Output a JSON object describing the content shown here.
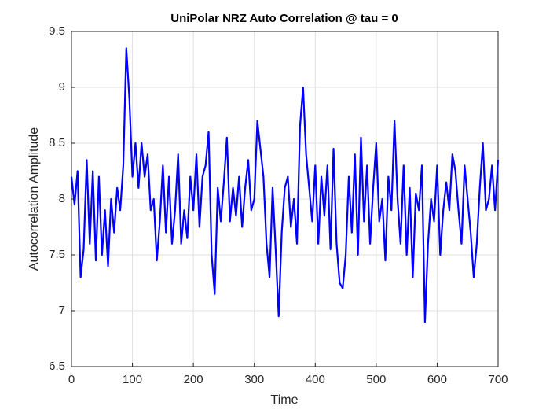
{
  "chart_data": {
    "type": "line",
    "title": "UniPolar NRZ Auto Correlation @ tau = 0",
    "xlabel": "Time",
    "ylabel": "Autocorrelation Amplitude",
    "xlim": [
      0,
      700
    ],
    "ylim": [
      6.5,
      9.5
    ],
    "xticks": [
      0,
      100,
      200,
      300,
      400,
      500,
      600,
      700
    ],
    "yticks": [
      6.5,
      7,
      7.5,
      8,
      8.5,
      9,
      9.5
    ],
    "grid": true,
    "series": [
      {
        "color": "#0000ff",
        "x": [
          0,
          5,
          10,
          15,
          20,
          25,
          30,
          35,
          40,
          45,
          50,
          55,
          60,
          65,
          70,
          75,
          80,
          85,
          90,
          95,
          100,
          105,
          110,
          115,
          120,
          125,
          130,
          135,
          140,
          145,
          150,
          155,
          160,
          165,
          170,
          175,
          180,
          185,
          190,
          195,
          200,
          205,
          210,
          215,
          220,
          225,
          230,
          235,
          240,
          245,
          250,
          255,
          260,
          265,
          270,
          275,
          280,
          285,
          290,
          295,
          300,
          305,
          310,
          315,
          320,
          325,
          330,
          335,
          340,
          345,
          350,
          355,
          360,
          365,
          370,
          375,
          380,
          385,
          390,
          395,
          400,
          405,
          410,
          415,
          420,
          425,
          430,
          435,
          440,
          445,
          450,
          455,
          460,
          465,
          470,
          475,
          480,
          485,
          490,
          495,
          500,
          505,
          510,
          515,
          520,
          525,
          530,
          535,
          540,
          545,
          550,
          555,
          560,
          565,
          570,
          575,
          580,
          585,
          590,
          595,
          600,
          605,
          610,
          615,
          620,
          625,
          630,
          635,
          640,
          645,
          650,
          655,
          660,
          665,
          670,
          675,
          680,
          685,
          690,
          695,
          700
        ],
        "values": [
          8.2,
          7.95,
          8.25,
          7.3,
          7.55,
          8.35,
          7.6,
          8.25,
          7.45,
          8.2,
          7.5,
          7.9,
          7.4,
          8.0,
          7.7,
          8.1,
          7.9,
          8.3,
          9.35,
          8.9,
          8.2,
          8.5,
          8.1,
          8.5,
          8.2,
          8.4,
          7.9,
          8.0,
          7.45,
          7.8,
          8.3,
          7.7,
          8.2,
          7.6,
          7.9,
          8.4,
          7.6,
          7.9,
          7.65,
          8.2,
          7.9,
          8.4,
          7.75,
          8.2,
          8.3,
          8.6,
          7.5,
          7.15,
          8.1,
          7.8,
          8.15,
          8.55,
          7.8,
          8.1,
          7.85,
          8.2,
          7.75,
          8.1,
          8.35,
          7.9,
          8.0,
          8.7,
          8.45,
          8.2,
          7.6,
          7.3,
          8.1,
          7.55,
          6.95,
          7.7,
          8.1,
          8.2,
          7.75,
          8.0,
          7.6,
          8.65,
          9.0,
          8.4,
          8.1,
          7.8,
          8.3,
          7.6,
          8.2,
          7.85,
          8.3,
          7.55,
          8.45,
          7.6,
          7.25,
          7.2,
          7.5,
          8.2,
          7.7,
          8.4,
          7.5,
          8.55,
          7.8,
          8.3,
          7.6,
          8.1,
          8.5,
          7.8,
          8.0,
          7.45,
          8.2,
          7.9,
          8.7,
          8.0,
          7.6,
          8.3,
          7.5,
          8.1,
          7.3,
          8.05,
          7.9,
          8.3,
          6.9,
          7.6,
          8.0,
          7.8,
          8.3,
          7.5,
          7.9,
          8.15,
          7.9,
          8.4,
          8.25,
          7.9,
          7.6,
          8.3,
          8.0,
          7.7,
          7.3,
          7.6,
          8.1,
          8.5,
          7.9,
          8.0,
          8.3,
          7.9,
          8.35
        ]
      }
    ]
  }
}
